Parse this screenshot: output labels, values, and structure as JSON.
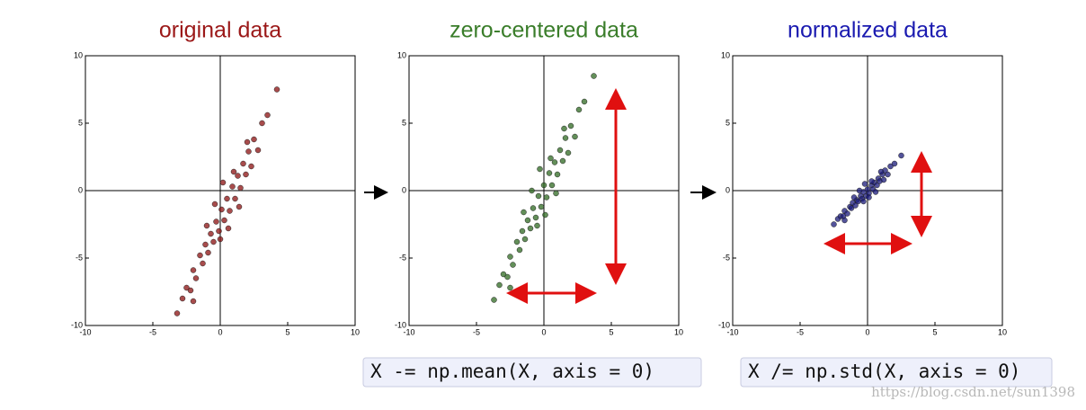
{
  "chart_data": [
    {
      "type": "scatter",
      "title": "original data",
      "title_color": "#9b1818",
      "color": "#8b1010",
      "xlim": [
        -10,
        10
      ],
      "ylim": [
        -10,
        10
      ],
      "xticks": [
        -10,
        -5,
        0,
        5,
        10
      ],
      "yticks": [
        -10,
        -5,
        0,
        5,
        10
      ],
      "x": [
        -3.2,
        -2.8,
        -2.5,
        -2.2,
        -2,
        -1.8,
        -1.5,
        -1.3,
        -1.1,
        -0.9,
        -0.7,
        -0.5,
        -0.3,
        -0.1,
        0.1,
        0.3,
        0.5,
        0.7,
        0.9,
        1.1,
        1.3,
        1.5,
        1.7,
        1.9,
        2.1,
        2.3,
        2.5,
        2.8,
        3.1,
        3.5,
        4.2,
        -1.0,
        0.0,
        1.0,
        2.0,
        -2.0,
        0.6,
        1.4,
        -0.4,
        0.2
      ],
      "values": [
        -9.1,
        -8.0,
        -7.2,
        -7.4,
        -5.9,
        -6.5,
        -4.8,
        -5.4,
        -4.0,
        -4.6,
        -3.2,
        -3.8,
        -2.3,
        -3.0,
        -1.4,
        -2.2,
        -0.6,
        -1.5,
        0.3,
        -0.6,
        1.1,
        0.2,
        2.0,
        1.2,
        2.9,
        1.8,
        3.8,
        3.0,
        5.0,
        5.6,
        7.5,
        -2.6,
        -3.6,
        1.4,
        3.6,
        -8.2,
        -2.8,
        -1.2,
        -1.0,
        0.6
      ]
    },
    {
      "type": "scatter",
      "title": "zero-centered data",
      "title_color": "#3a7d2a",
      "color": "#2f6a22",
      "xlim": [
        -10,
        10
      ],
      "ylim": [
        -10,
        10
      ],
      "xticks": [
        -10,
        -5,
        0,
        5,
        10
      ],
      "yticks": [
        -10,
        -5,
        0,
        5,
        10
      ],
      "x": [
        -3.7,
        -3.3,
        -3.0,
        -2.7,
        -2.5,
        -2.3,
        -2.0,
        -1.8,
        -1.6,
        -1.4,
        -1.2,
        -1.0,
        -0.8,
        -0.6,
        -0.4,
        -0.2,
        0,
        0.2,
        0.4,
        0.6,
        0.8,
        1.0,
        1.2,
        1.4,
        1.6,
        1.8,
        2.0,
        2.3,
        2.6,
        3.0,
        3.7,
        -1.5,
        -0.5,
        0.5,
        1.5,
        -2.5,
        0.1,
        0.9,
        -0.9,
        -0.3
      ],
      "values": [
        -8.1,
        -7.0,
        -6.2,
        -6.4,
        -4.9,
        -5.5,
        -3.8,
        -4.4,
        -3.0,
        -3.6,
        -2.2,
        -2.8,
        -1.3,
        -2.0,
        -0.4,
        -1.2,
        0.4,
        -0.5,
        1.3,
        0.4,
        2.1,
        1.2,
        3.0,
        2.2,
        3.9,
        2.8,
        4.8,
        4.0,
        6.0,
        6.6,
        8.5,
        -1.6,
        -2.6,
        2.4,
        4.6,
        -7.2,
        -1.8,
        -0.2,
        0,
        1.6
      ]
    },
    {
      "type": "scatter",
      "title": "normalized data",
      "title_color": "#1a1ab0",
      "color": "#1a1a7a",
      "xlim": [
        -10,
        10
      ],
      "ylim": [
        -10,
        10
      ],
      "xticks": [
        -10,
        -5,
        0,
        5,
        10
      ],
      "yticks": [
        -10,
        -5,
        0,
        5,
        10
      ],
      "x": [
        -2.5,
        -2.2,
        -2.0,
        -1.8,
        -1.7,
        -1.5,
        -1.3,
        -1.2,
        -1.1,
        -0.9,
        -0.8,
        -0.7,
        -0.5,
        -0.4,
        -0.3,
        -0.1,
        0,
        0.1,
        0.3,
        0.4,
        0.5,
        0.7,
        0.8,
        0.9,
        1.1,
        1.2,
        1.3,
        1.5,
        1.7,
        2.0,
        2.5,
        -1.0,
        -0.3,
        0.3,
        1.0,
        -1.7,
        0.1,
        0.6,
        -0.6,
        -0.2
      ],
      "values": [
        -2.5,
        -2.1,
        -1.9,
        -1.9,
        -1.5,
        -1.7,
        -1.2,
        -1.3,
        -0.9,
        -1.1,
        -0.7,
        -0.8,
        -0.4,
        -0.6,
        -0.1,
        -0.4,
        0.1,
        -0.2,
        0.4,
        0.1,
        0.6,
        0.4,
        0.9,
        0.7,
        1.2,
        0.8,
        1.5,
        1.2,
        1.8,
        2.0,
        2.6,
        -0.5,
        -0.8,
        0.7,
        1.4,
        -2.2,
        -0.5,
        -0.1,
        0,
        0.5
      ]
    }
  ],
  "code": [
    "X -= np.mean(X, axis = 0)",
    "X /= np.std(X, axis = 0)"
  ],
  "watermark": "https://blog.csdn.net/sun1398"
}
